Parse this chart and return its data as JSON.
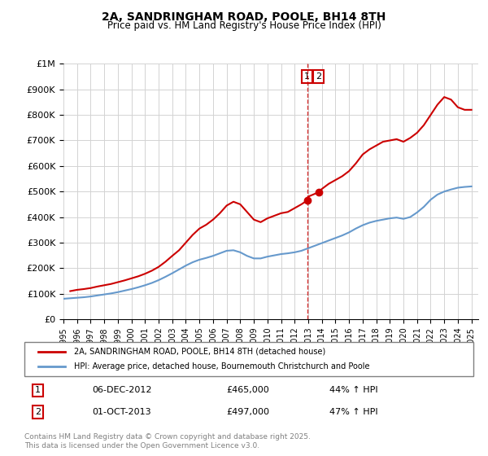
{
  "title": "2A, SANDRINGHAM ROAD, POOLE, BH14 8TH",
  "subtitle": "Price paid vs. HM Land Registry's House Price Index (HPI)",
  "legend_line1": "2A, SANDRINGHAM ROAD, POOLE, BH14 8TH (detached house)",
  "legend_line2": "HPI: Average price, detached house, Bournemouth Christchurch and Poole",
  "annotation1_num": "1",
  "annotation1_date": "06-DEC-2012",
  "annotation1_price": "£465,000",
  "annotation1_pct": "44% ↑ HPI",
  "annotation2_num": "2",
  "annotation2_date": "01-OCT-2013",
  "annotation2_price": "£497,000",
  "annotation2_pct": "47% ↑ HPI",
  "footer": "Contains HM Land Registry data © Crown copyright and database right 2025.\nThis data is licensed under the Open Government Licence v3.0.",
  "red_color": "#cc0000",
  "blue_color": "#6699cc",
  "annotation_box_color": "#cc0000",
  "ylim": [
    0,
    1000000
  ],
  "yticks": [
    0,
    100000,
    200000,
    300000,
    400000,
    500000,
    600000,
    700000,
    800000,
    900000,
    1000000
  ],
  "ytick_labels": [
    "£0",
    "£100K",
    "£200K",
    "£300K",
    "£400K",
    "£500K",
    "£600K",
    "£700K",
    "£800K",
    "£900K",
    "£1M"
  ],
  "red_x": [
    1995.5,
    1996.0,
    1996.5,
    1997.0,
    1997.5,
    1998.0,
    1998.5,
    1999.0,
    1999.5,
    2000.0,
    2000.5,
    2001.0,
    2001.5,
    2002.0,
    2002.5,
    2003.0,
    2003.5,
    2004.0,
    2004.5,
    2005.0,
    2005.5,
    2006.0,
    2006.5,
    2007.0,
    2007.5,
    2008.0,
    2008.5,
    2009.0,
    2009.5,
    2010.0,
    2010.5,
    2011.0,
    2011.5,
    2012.0,
    2012.5,
    2012.92,
    2013.0,
    2013.75,
    2014.0,
    2014.5,
    2015.0,
    2015.5,
    2016.0,
    2016.5,
    2017.0,
    2017.5,
    2018.0,
    2018.5,
    2019.0,
    2019.5,
    2020.0,
    2020.5,
    2021.0,
    2021.5,
    2022.0,
    2022.5,
    2023.0,
    2023.5,
    2024.0,
    2024.5,
    2025.0
  ],
  "red_y": [
    110000,
    115000,
    118000,
    122000,
    128000,
    133000,
    138000,
    145000,
    152000,
    160000,
    168000,
    178000,
    190000,
    205000,
    225000,
    248000,
    270000,
    300000,
    330000,
    355000,
    370000,
    390000,
    415000,
    445000,
    460000,
    450000,
    420000,
    390000,
    380000,
    395000,
    405000,
    415000,
    420000,
    435000,
    450000,
    465000,
    480000,
    497000,
    510000,
    530000,
    545000,
    560000,
    580000,
    610000,
    645000,
    665000,
    680000,
    695000,
    700000,
    705000,
    695000,
    710000,
    730000,
    760000,
    800000,
    840000,
    870000,
    860000,
    830000,
    820000,
    820000
  ],
  "blue_x": [
    1995.0,
    1995.5,
    1996.0,
    1996.5,
    1997.0,
    1997.5,
    1998.0,
    1998.5,
    1999.0,
    1999.5,
    2000.0,
    2000.5,
    2001.0,
    2001.5,
    2002.0,
    2002.5,
    2003.0,
    2003.5,
    2004.0,
    2004.5,
    2005.0,
    2005.5,
    2006.0,
    2006.5,
    2007.0,
    2007.5,
    2008.0,
    2008.5,
    2009.0,
    2009.5,
    2010.0,
    2010.5,
    2011.0,
    2011.5,
    2012.0,
    2012.5,
    2013.0,
    2013.5,
    2014.0,
    2014.5,
    2015.0,
    2015.5,
    2016.0,
    2016.5,
    2017.0,
    2017.5,
    2018.0,
    2018.5,
    2019.0,
    2019.5,
    2020.0,
    2020.5,
    2021.0,
    2021.5,
    2022.0,
    2022.5,
    2023.0,
    2023.5,
    2024.0,
    2024.5,
    2025.0
  ],
  "blue_y": [
    80000,
    82000,
    84000,
    86000,
    89000,
    93000,
    97000,
    101000,
    106000,
    112000,
    118000,
    125000,
    133000,
    142000,
    153000,
    166000,
    180000,
    195000,
    210000,
    223000,
    233000,
    240000,
    248000,
    258000,
    268000,
    270000,
    262000,
    248000,
    238000,
    238000,
    245000,
    250000,
    255000,
    258000,
    262000,
    268000,
    278000,
    288000,
    298000,
    308000,
    318000,
    328000,
    340000,
    355000,
    368000,
    378000,
    385000,
    390000,
    395000,
    398000,
    393000,
    400000,
    418000,
    440000,
    468000,
    488000,
    500000,
    508000,
    515000,
    518000,
    520000
  ],
  "vline_x": 2012.92,
  "purchase1_x": 2012.92,
  "purchase1_y": 465000,
  "purchase2_x": 2013.75,
  "purchase2_y": 497000,
  "xtick_years": [
    1995,
    1996,
    1997,
    1998,
    1999,
    2000,
    2001,
    2002,
    2003,
    2004,
    2005,
    2006,
    2007,
    2008,
    2009,
    2010,
    2011,
    2012,
    2013,
    2014,
    2015,
    2016,
    2017,
    2018,
    2019,
    2020,
    2021,
    2022,
    2023,
    2024,
    2025
  ]
}
